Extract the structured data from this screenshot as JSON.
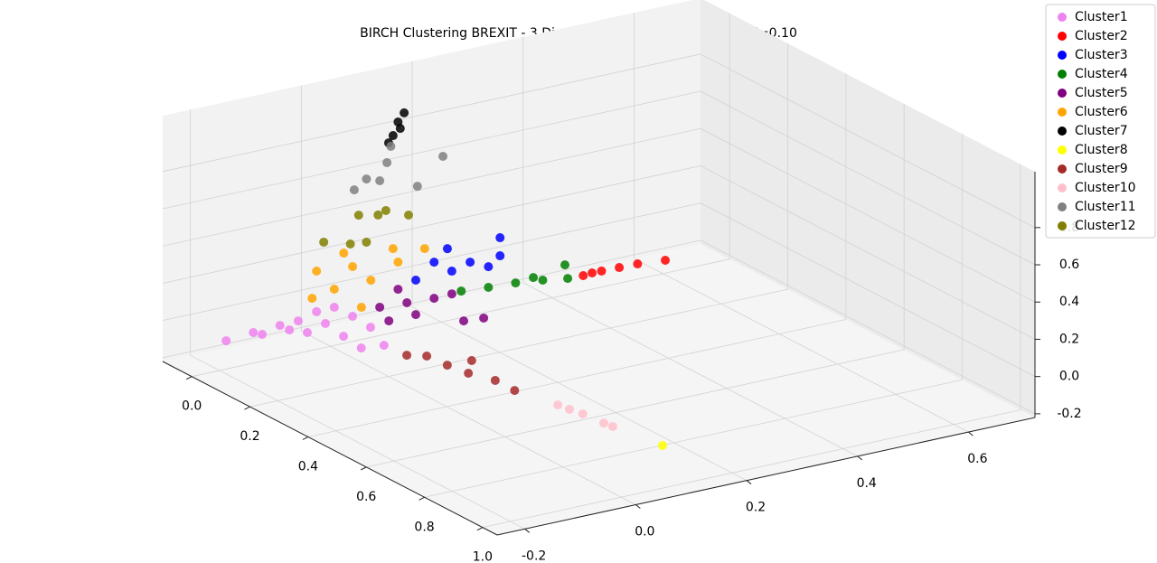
{
  "chart_data": {
    "type": "scatter3d",
    "title": "BIRCH Clustering BREXIT - 3 Dimensions, brfac = 50, threshold=0.10",
    "xlim": [
      -0.1,
      1.05
    ],
    "ylim": [
      -0.25,
      0.72
    ],
    "zlim": [
      -0.22,
      1.1
    ],
    "xticks": [
      {
        "value": 0,
        "label": "0.0"
      },
      0.2,
      0.4,
      0.6,
      0.8,
      {
        "value": 1,
        "label": "1.0"
      }
    ],
    "yticks": [
      -0.2,
      {
        "value": 0,
        "label": "0.0"
      },
      0.2,
      0.4,
      0.6
    ],
    "zticks": [
      -0.2,
      {
        "value": 0,
        "label": "0.0"
      },
      0.2,
      0.4,
      0.6,
      0.8
    ],
    "grid": true,
    "legend": "upper right",
    "series": [
      {
        "name": "Cluster1",
        "color": "#ee82ee",
        "x": [
          0,
          0,
          0,
          0,
          0,
          0,
          0,
          0.1,
          0.15,
          0.15,
          0.15,
          0.1,
          0,
          0,
          0
        ],
        "y": [
          -0.188,
          -0.123,
          -0.091,
          -0.058,
          -0.025,
          0.007,
          0.04,
          0.02,
          -0.023,
          0.018,
          -0.055,
          -0.094,
          -0.074,
          -0.009,
          -0.139
        ],
        "z": [
          -0.068,
          -0.076,
          -0.049,
          -0.046,
          -0.018,
          -0.015,
          -0.085,
          -0.05,
          -0.093,
          -0.105,
          -0.009,
          -0.004,
          -0.084,
          -0.092,
          -0.056
        ]
      },
      {
        "name": "Cluster2",
        "color": "#ff0000",
        "x": [
          0,
          0,
          0,
          0,
          0,
          0
        ],
        "y": [
          0.456,
          0.489,
          0.521,
          0.554,
          0.604,
          0.472
        ],
        "z": [
          -0.137,
          -0.134,
          -0.136,
          -0.138,
          -0.151,
          -0.133
        ]
      },
      {
        "name": "Cluster3",
        "color": "#0000ff",
        "x": [
          0,
          0,
          0,
          0,
          0,
          0,
          0,
          0
        ],
        "y": [
          0.187,
          0.219,
          0.252,
          0.306,
          0.306,
          0.285,
          0.154,
          0.211
        ],
        "z": [
          0.11,
          0.041,
          0.068,
          0.164,
          0.067,
          0.022,
          0.035,
          0.167
        ]
      },
      {
        "name": "Cluster4",
        "color": "#008000",
        "x": [
          0,
          0,
          0,
          0,
          0,
          0,
          0
        ],
        "y": [
          0.236,
          0.285,
          0.334,
          0.383,
          0.428,
          0.423,
          0.366
        ],
        "z": [
          -0.077,
          -0.089,
          -0.097,
          -0.114,
          -0.134,
          -0.058,
          -0.089
        ]
      },
      {
        "name": "Cluster5",
        "color": "#800080",
        "x": [
          0,
          0,
          0,
          0,
          0,
          0.1,
          0.1,
          0,
          0.1
        ],
        "y": [
          0.089,
          0.138,
          0.187,
          0.219,
          0.154,
          0.188,
          0.224,
          0.122,
          0.053
        ],
        "z": [
          -0.068,
          -0.076,
          -0.084,
          -0.081,
          -0.15,
          -0.125,
          -0.133,
          0.007,
          -0.037
        ]
      },
      {
        "name": "Cluster6",
        "color": "#ffa500",
        "x": [
          0,
          0,
          0,
          0,
          0,
          0,
          0,
          0,
          0,
          0
        ],
        "y": [
          -0.025,
          0.007,
          0.04,
          0.073,
          0.122,
          0.17,
          -0.033,
          0.056,
          0.113,
          0.024
        ],
        "z": [
          0.2,
          0.082,
          0.182,
          0.087,
          0.153,
          0.194,
          0.059,
          -0.047,
          0.231,
          0.265
        ]
      },
      {
        "name": "Cluster7",
        "color": "#000000",
        "x": [
          0,
          0,
          0,
          0,
          0
        ],
        "y": [
          0.133,
          0.122,
          0.113,
          0.105,
          0.126
        ],
        "z": [
          0.947,
          0.905,
          0.838,
          0.804,
          0.868
        ]
      },
      {
        "name": "Cluster8",
        "color": "#ffff00",
        "x": [
          0.9
        ],
        "y": [
          0.127
        ],
        "z": [
          -0.106
        ]
      },
      {
        "name": "Cluster9",
        "color": "#a52a2a",
        "x": [
          0.4,
          0.4,
          0.4,
          0.4,
          0.5,
          0.5,
          0.4
        ],
        "y": [
          -0.072,
          -0.036,
          0.001,
          0.039,
          0.035,
          0.07,
          0.045
        ],
        "z": [
          0.103,
          0.075,
          0.002,
          -0.066,
          -0.021,
          -0.098,
          -0.002
        ]
      },
      {
        "name": "Cluster10",
        "color": "#ffc0cb",
        "x": [
          0.7,
          0.7,
          0.7,
          0.7,
          0.7
        ],
        "y": [
          0.043,
          0.064,
          0.088,
          0.126,
          0.142
        ],
        "z": [
          0.004,
          -0.033,
          -0.073,
          -0.147,
          -0.176
        ]
      },
      {
        "name": "Cluster11",
        "color": "#808080",
        "x": [
          0,
          0,
          0,
          0,
          0,
          0,
          0
        ],
        "y": [
          0.203,
          0.157,
          0.089,
          0.065,
          0.043,
          0.102,
          0.109
        ],
        "z": [
          0.668,
          0.537,
          0.611,
          0.636,
          0.592,
          0.7,
          0.783
        ]
      },
      {
        "name": "Cluster12",
        "color": "#808000",
        "x": [
          0,
          0,
          0,
          0,
          0,
          0,
          0
        ],
        "y": [
          0.051,
          0.086,
          0.141,
          -0.012,
          0.036,
          0.065,
          0.1
        ],
        "z": [
          0.451,
          0.429,
          0.393,
          0.347,
          0.306,
          0.297,
          0.444
        ]
      }
    ]
  }
}
